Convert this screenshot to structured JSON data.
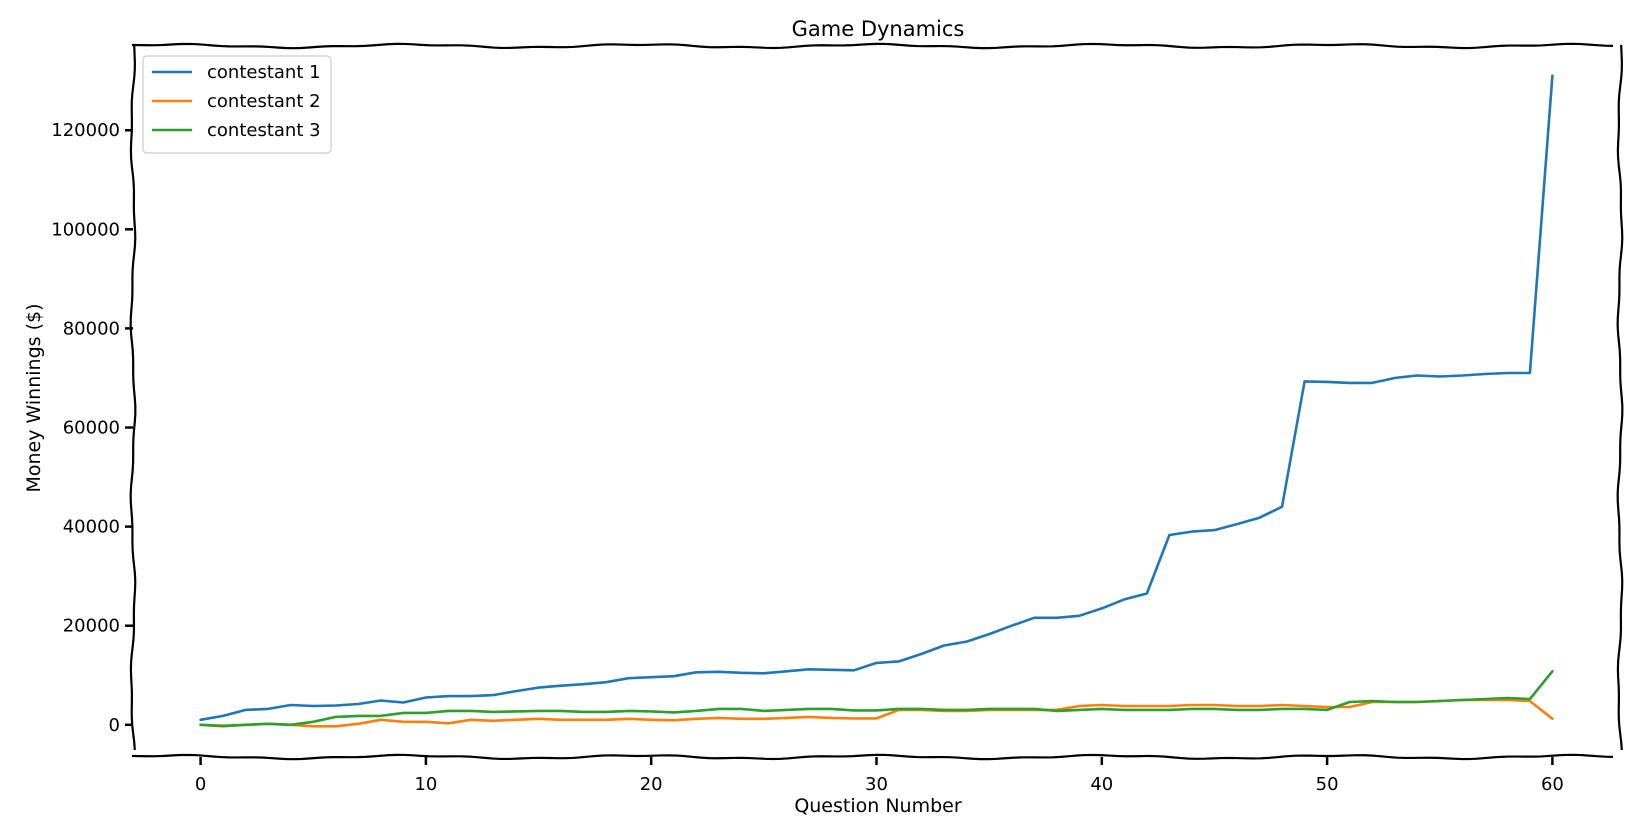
{
  "chart_data": {
    "type": "line",
    "title": "Game Dynamics",
    "xlabel": "Question Number",
    "ylabel": "Money Winnings ($)",
    "xlim": [
      -3,
      63
    ],
    "ylim": [
      -6500,
      137000
    ],
    "xticks": [
      0,
      10,
      20,
      30,
      40,
      50,
      60
    ],
    "yticks": [
      0,
      20000,
      40000,
      60000,
      80000,
      100000,
      120000
    ],
    "grid": false,
    "legend_position": "top-left",
    "x": [
      0,
      1,
      2,
      3,
      4,
      5,
      6,
      7,
      8,
      9,
      10,
      11,
      12,
      13,
      14,
      15,
      16,
      17,
      18,
      19,
      20,
      21,
      22,
      23,
      24,
      25,
      26,
      27,
      28,
      29,
      30,
      31,
      32,
      33,
      34,
      35,
      36,
      37,
      38,
      39,
      40,
      41,
      42,
      43,
      44,
      45,
      46,
      47,
      48,
      49,
      50,
      51,
      52,
      53,
      54,
      55,
      56,
      57,
      58,
      59,
      60
    ],
    "series": [
      {
        "name": "contestant 1",
        "color": "#1f77b4",
        "values": [
          1000,
          1800,
          3000,
          3200,
          4000,
          3800,
          3900,
          4200,
          4900,
          4500,
          5500,
          5800,
          5800,
          6000,
          6800,
          7500,
          7900,
          8200,
          8600,
          9400,
          9600,
          9800,
          10600,
          10700,
          10500,
          10400,
          10800,
          11200,
          11100,
          11000,
          12500,
          12800,
          14300,
          16000,
          16800,
          18300,
          20000,
          21600,
          21600,
          22000,
          23500,
          25300,
          26500,
          38300,
          39000,
          39300,
          40500,
          41800,
          44000,
          69300,
          69200,
          69000,
          69000,
          70000,
          70500,
          70300,
          70500,
          70800,
          71000,
          71000,
          131000
        ]
      },
      {
        "name": "contestant 2",
        "color": "#ff7f0e",
        "values": [
          0,
          -300,
          0,
          200,
          0,
          -300,
          -300,
          200,
          1000,
          600,
          600,
          300,
          1000,
          800,
          1000,
          1200,
          1000,
          1000,
          1000,
          1200,
          1000,
          900,
          1200,
          1400,
          1200,
          1200,
          1400,
          1600,
          1400,
          1300,
          1300,
          3000,
          3000,
          2800,
          2800,
          3000,
          3000,
          3000,
          3000,
          3800,
          4000,
          3800,
          3800,
          3800,
          4000,
          4000,
          3800,
          3800,
          4000,
          3800,
          3600,
          3600,
          4600,
          4600,
          4600,
          4800,
          5000,
          5000,
          5000,
          4800,
          1200
        ]
      },
      {
        "name": "contestant 3",
        "color": "#2ca02c",
        "values": [
          0,
          -200,
          0,
          200,
          0,
          600,
          1600,
          1800,
          1800,
          2400,
          2400,
          2800,
          2800,
          2600,
          2700,
          2800,
          2800,
          2600,
          2600,
          2800,
          2700,
          2500,
          2800,
          3200,
          3200,
          2800,
          3000,
          3200,
          3200,
          2900,
          2900,
          3200,
          3200,
          3000,
          3000,
          3200,
          3200,
          3200,
          2800,
          3000,
          3200,
          3000,
          3000,
          3000,
          3200,
          3200,
          3000,
          3000,
          3200,
          3200,
          3000,
          4600,
          4800,
          4600,
          4600,
          4800,
          5000,
          5200,
          5400,
          5200,
          10800
        ]
      }
    ]
  }
}
